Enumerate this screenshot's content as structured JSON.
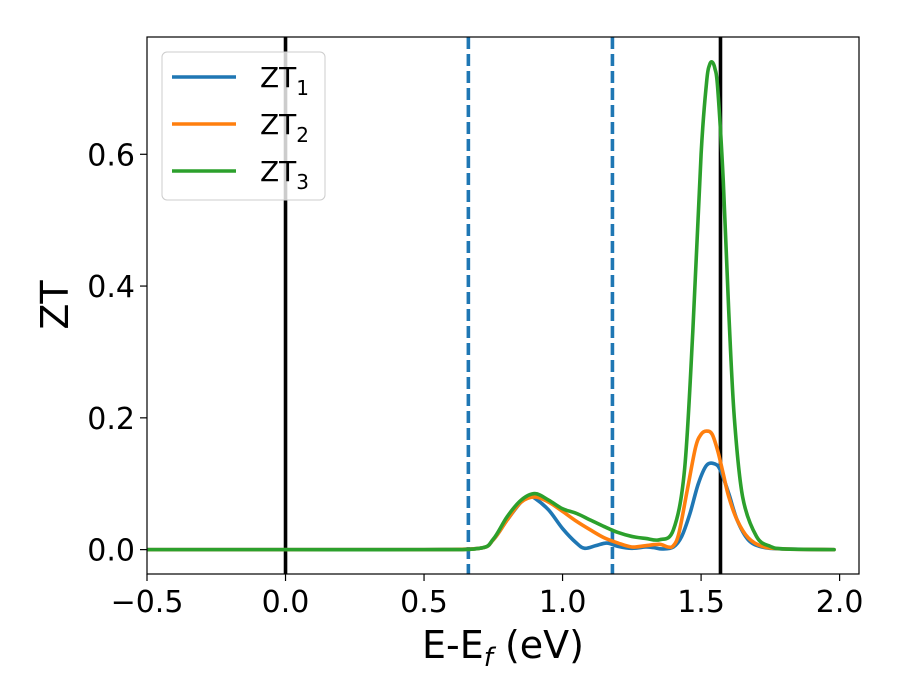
{
  "chart_data": {
    "type": "line",
    "title": "",
    "xlabel": "E-E",
    "xlabel_sub": "f",
    "xlabel_unit": " (eV)",
    "ylabel": "ZT",
    "xlim": [
      -0.5,
      2.07
    ],
    "ylim": [
      -0.037,
      0.778
    ],
    "xticks": [
      -0.5,
      0.0,
      0.5,
      1.0,
      1.5,
      2.0
    ],
    "xtick_labels": [
      "−0.5",
      "0.0",
      "0.5",
      "1.0",
      "1.5",
      "2.0"
    ],
    "yticks": [
      0.0,
      0.2,
      0.4,
      0.6
    ],
    "ytick_labels": [
      "0.0",
      "0.2",
      "0.4",
      "0.6"
    ],
    "grid": false,
    "legend_position": "top-left",
    "vlines": [
      {
        "x": 0.0,
        "style": "solid",
        "color": "#000000"
      },
      {
        "x": 0.66,
        "style": "dashed",
        "color": "#1f77b4"
      },
      {
        "x": 1.18,
        "style": "dashed",
        "color": "#1f77b4"
      },
      {
        "x": 1.57,
        "style": "solid",
        "color": "#000000"
      }
    ],
    "series": [
      {
        "name": "ZT",
        "name_sub": "1",
        "color": "#1f77b4",
        "x": [
          -0.5,
          0.0,
          0.5,
          0.7,
          0.75,
          0.8,
          0.85,
          0.88,
          0.9,
          0.95,
          1.0,
          1.05,
          1.08,
          1.12,
          1.16,
          1.2,
          1.25,
          1.3,
          1.33,
          1.36,
          1.4,
          1.43,
          1.46,
          1.49,
          1.52,
          1.55,
          1.57,
          1.6,
          1.63,
          1.67,
          1.72,
          1.8,
          1.98
        ],
        "y": [
          0,
          0,
          0,
          0.002,
          0.015,
          0.045,
          0.072,
          0.08,
          0.078,
          0.06,
          0.032,
          0.01,
          0.002,
          0.006,
          0.01,
          0.005,
          0.002,
          0.004,
          0.003,
          0.001,
          0.004,
          0.02,
          0.055,
          0.1,
          0.128,
          0.13,
          0.12,
          0.085,
          0.045,
          0.015,
          0.004,
          0.001,
          0
        ]
      },
      {
        "name": "ZT",
        "name_sub": "2",
        "color": "#ff7f0e",
        "x": [
          -0.5,
          0.0,
          0.5,
          0.7,
          0.75,
          0.8,
          0.85,
          0.9,
          0.95,
          1.0,
          1.05,
          1.1,
          1.15,
          1.2,
          1.25,
          1.3,
          1.35,
          1.38,
          1.4,
          1.42,
          1.45,
          1.48,
          1.5,
          1.52,
          1.54,
          1.56,
          1.58,
          1.6,
          1.63,
          1.67,
          1.72,
          1.8,
          1.98
        ],
        "y": [
          0,
          0,
          0,
          0.002,
          0.015,
          0.045,
          0.072,
          0.08,
          0.072,
          0.058,
          0.043,
          0.03,
          0.018,
          0.01,
          0.004,
          0.006,
          0.008,
          0.004,
          0.006,
          0.025,
          0.09,
          0.155,
          0.175,
          0.18,
          0.175,
          0.15,
          0.115,
          0.08,
          0.045,
          0.018,
          0.005,
          0.001,
          0
        ]
      },
      {
        "name": "ZT",
        "name_sub": "3",
        "color": "#2ca02c",
        "x": [
          -0.5,
          0.0,
          0.5,
          0.7,
          0.75,
          0.8,
          0.85,
          0.9,
          0.95,
          1.0,
          1.05,
          1.1,
          1.15,
          1.2,
          1.25,
          1.3,
          1.35,
          1.4,
          1.44,
          1.47,
          1.5,
          1.52,
          1.53,
          1.54,
          1.55,
          1.56,
          1.58,
          1.6,
          1.62,
          1.65,
          1.7,
          1.75,
          1.8,
          1.98
        ],
        "y": [
          0,
          0,
          0,
          0.002,
          0.016,
          0.05,
          0.075,
          0.085,
          0.075,
          0.062,
          0.055,
          0.045,
          0.035,
          0.026,
          0.02,
          0.017,
          0.015,
          0.03,
          0.12,
          0.33,
          0.6,
          0.71,
          0.735,
          0.74,
          0.73,
          0.7,
          0.56,
          0.36,
          0.2,
          0.08,
          0.02,
          0.005,
          0.001,
          0
        ]
      }
    ]
  }
}
